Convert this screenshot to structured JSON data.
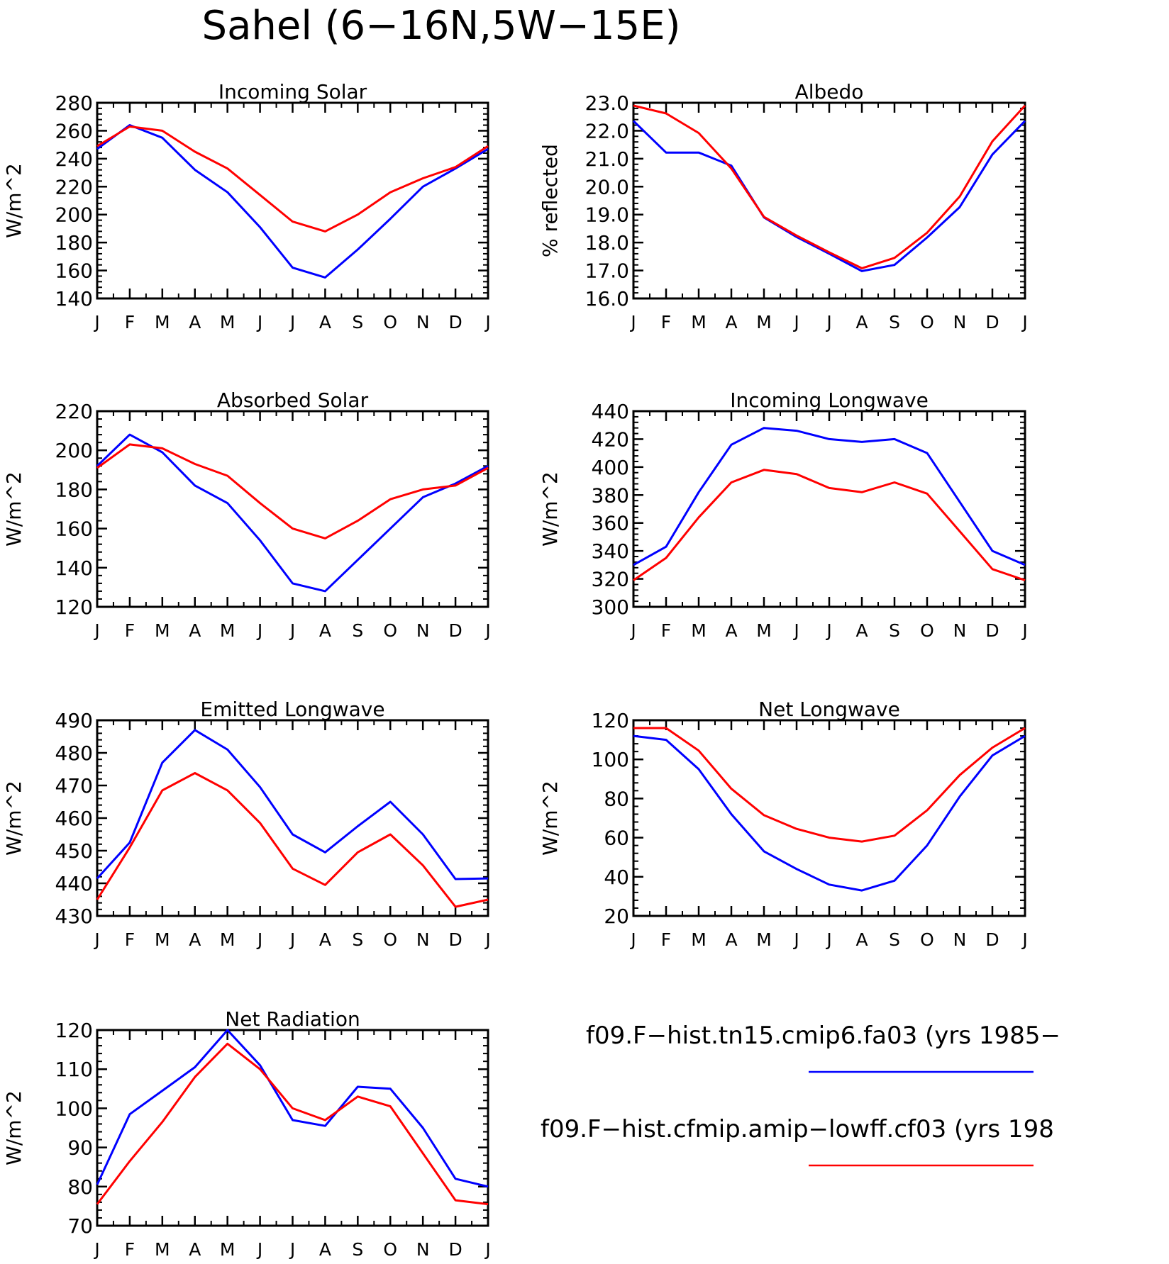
{
  "figure_title": "Sahel (6−16N,5W−15E)",
  "months": [
    "J",
    "F",
    "M",
    "A",
    "M",
    "J",
    "J",
    "A",
    "S",
    "O",
    "N",
    "D",
    "J"
  ],
  "colors": {
    "series1": "#0000ff",
    "series2": "#ff0000",
    "axis": "#000000"
  },
  "legend": [
    {
      "label": "f09.F−hist.tn15.cmip6.fa03 (yrs 1985−",
      "color": "#0000ff"
    },
    {
      "label": "f09.F−hist.cfmip.amip−lowff.cf03 (yrs 198",
      "color": "#ff0000"
    }
  ],
  "chart_data": [
    {
      "type": "line",
      "title": "Incoming Solar",
      "ylabel": "W/m^2",
      "ylim": [
        140,
        280
      ],
      "yticks": [
        "140",
        "160",
        "180",
        "200",
        "220",
        "240",
        "260",
        "280"
      ],
      "categories": [
        "J",
        "F",
        "M",
        "A",
        "M",
        "J",
        "J",
        "A",
        "S",
        "O",
        "N",
        "D",
        "J"
      ],
      "series": [
        {
          "values": [
            247,
            264,
            255,
            232,
            216,
            191,
            162,
            155,
            175,
            197,
            220,
            233,
            247
          ]
        },
        {
          "values": [
            249,
            263,
            260,
            245,
            233,
            214,
            195,
            188,
            200,
            216,
            226,
            234,
            249
          ]
        }
      ]
    },
    {
      "type": "line",
      "title": "Albedo",
      "ylabel": "% reflected",
      "ylim": [
        16.0,
        23.0
      ],
      "yticks": [
        "16.0",
        "17.0",
        "18.0",
        "19.0",
        "20.0",
        "21.0",
        "22.0",
        "23.0"
      ],
      "categories": [
        "J",
        "F",
        "M",
        "A",
        "M",
        "J",
        "J",
        "A",
        "S",
        "O",
        "N",
        "D",
        "J"
      ],
      "series": [
        {
          "values": [
            22.35,
            21.22,
            21.22,
            20.75,
            18.9,
            18.2,
            17.6,
            16.98,
            17.2,
            18.18,
            19.27,
            21.15,
            22.35
          ]
        },
        {
          "values": [
            22.9,
            22.62,
            21.92,
            20.65,
            18.92,
            18.25,
            17.65,
            17.08,
            17.45,
            18.35,
            19.65,
            21.62,
            22.9
          ]
        }
      ]
    },
    {
      "type": "line",
      "title": "Absorbed Solar",
      "ylabel": "W/m^2",
      "ylim": [
        120,
        220
      ],
      "yticks": [
        "120",
        "140",
        "160",
        "180",
        "200",
        "220"
      ],
      "categories": [
        "J",
        "F",
        "M",
        "A",
        "M",
        "J",
        "J",
        "A",
        "S",
        "O",
        "N",
        "D",
        "J"
      ],
      "series": [
        {
          "values": [
            192,
            208,
            199,
            182,
            173,
            154,
            132,
            128,
            144,
            160,
            176,
            183,
            192
          ]
        },
        {
          "values": [
            191,
            203,
            201,
            193,
            187,
            173,
            160,
            155,
            164,
            175,
            180,
            182,
            191
          ]
        }
      ]
    },
    {
      "type": "line",
      "title": "Incoming Longwave",
      "ylabel": "W/m^2",
      "ylim": [
        300,
        440
      ],
      "yticks": [
        "300",
        "320",
        "340",
        "360",
        "380",
        "400",
        "420",
        "440"
      ],
      "categories": [
        "J",
        "F",
        "M",
        "A",
        "M",
        "J",
        "J",
        "A",
        "S",
        "O",
        "N",
        "D",
        "J"
      ],
      "series": [
        {
          "values": [
            330,
            343,
            382,
            416,
            428,
            426,
            420,
            418,
            420,
            410,
            375,
            340,
            330
          ]
        },
        {
          "values": [
            319,
            335,
            364,
            389,
            398,
            395,
            385,
            382,
            389,
            381,
            354,
            327,
            319
          ]
        }
      ]
    },
    {
      "type": "line",
      "title": "Emitted Longwave",
      "ylabel": "W/m^2",
      "ylim": [
        430,
        490
      ],
      "yticks": [
        "430",
        "440",
        "450",
        "460",
        "470",
        "480",
        "490"
      ],
      "categories": [
        "J",
        "F",
        "M",
        "A",
        "M",
        "J",
        "J",
        "A",
        "S",
        "O",
        "N",
        "D",
        "J"
      ],
      "series": [
        {
          "values": [
            441.5,
            452.5,
            477,
            487,
            481,
            469.5,
            455,
            449.5,
            457.5,
            465,
            455,
            441.3,
            441.5
          ]
        },
        {
          "values": [
            435,
            451,
            468.5,
            473.8,
            468.5,
            458.5,
            444.5,
            439.5,
            449.5,
            455,
            445.5,
            432.8,
            435
          ]
        }
      ]
    },
    {
      "type": "line",
      "title": "Net Longwave",
      "ylabel": "W/m^2",
      "ylim": [
        20,
        120
      ],
      "yticks": [
        "20",
        "40",
        "60",
        "80",
        "100",
        "120"
      ],
      "categories": [
        "J",
        "F",
        "M",
        "A",
        "M",
        "J",
        "J",
        "A",
        "S",
        "O",
        "N",
        "D",
        "J"
      ],
      "series": [
        {
          "values": [
            112,
            110,
            95,
            72,
            53,
            44,
            36,
            33,
            38,
            56,
            81,
            102,
            112
          ]
        },
        {
          "values": [
            116,
            116,
            104.5,
            85,
            71.5,
            64.5,
            60,
            58,
            61,
            74,
            92,
            106,
            116
          ]
        }
      ]
    },
    {
      "type": "line",
      "title": "Net Radiation",
      "ylabel": "W/m^2",
      "ylim": [
        70,
        120
      ],
      "yticks": [
        "70",
        "80",
        "90",
        "100",
        "110",
        "120"
      ],
      "categories": [
        "J",
        "F",
        "M",
        "A",
        "M",
        "J",
        "J",
        "A",
        "S",
        "O",
        "N",
        "D",
        "J"
      ],
      "series": [
        {
          "values": [
            80.5,
            98.5,
            104.5,
            110.5,
            120,
            111,
            97,
            95.5,
            105.5,
            105,
            95,
            82,
            80
          ]
        },
        {
          "values": [
            75.5,
            86.5,
            96.5,
            108,
            116.5,
            110,
            100,
            97,
            103,
            100.5,
            88.5,
            76.5,
            75.5
          ]
        }
      ]
    }
  ]
}
